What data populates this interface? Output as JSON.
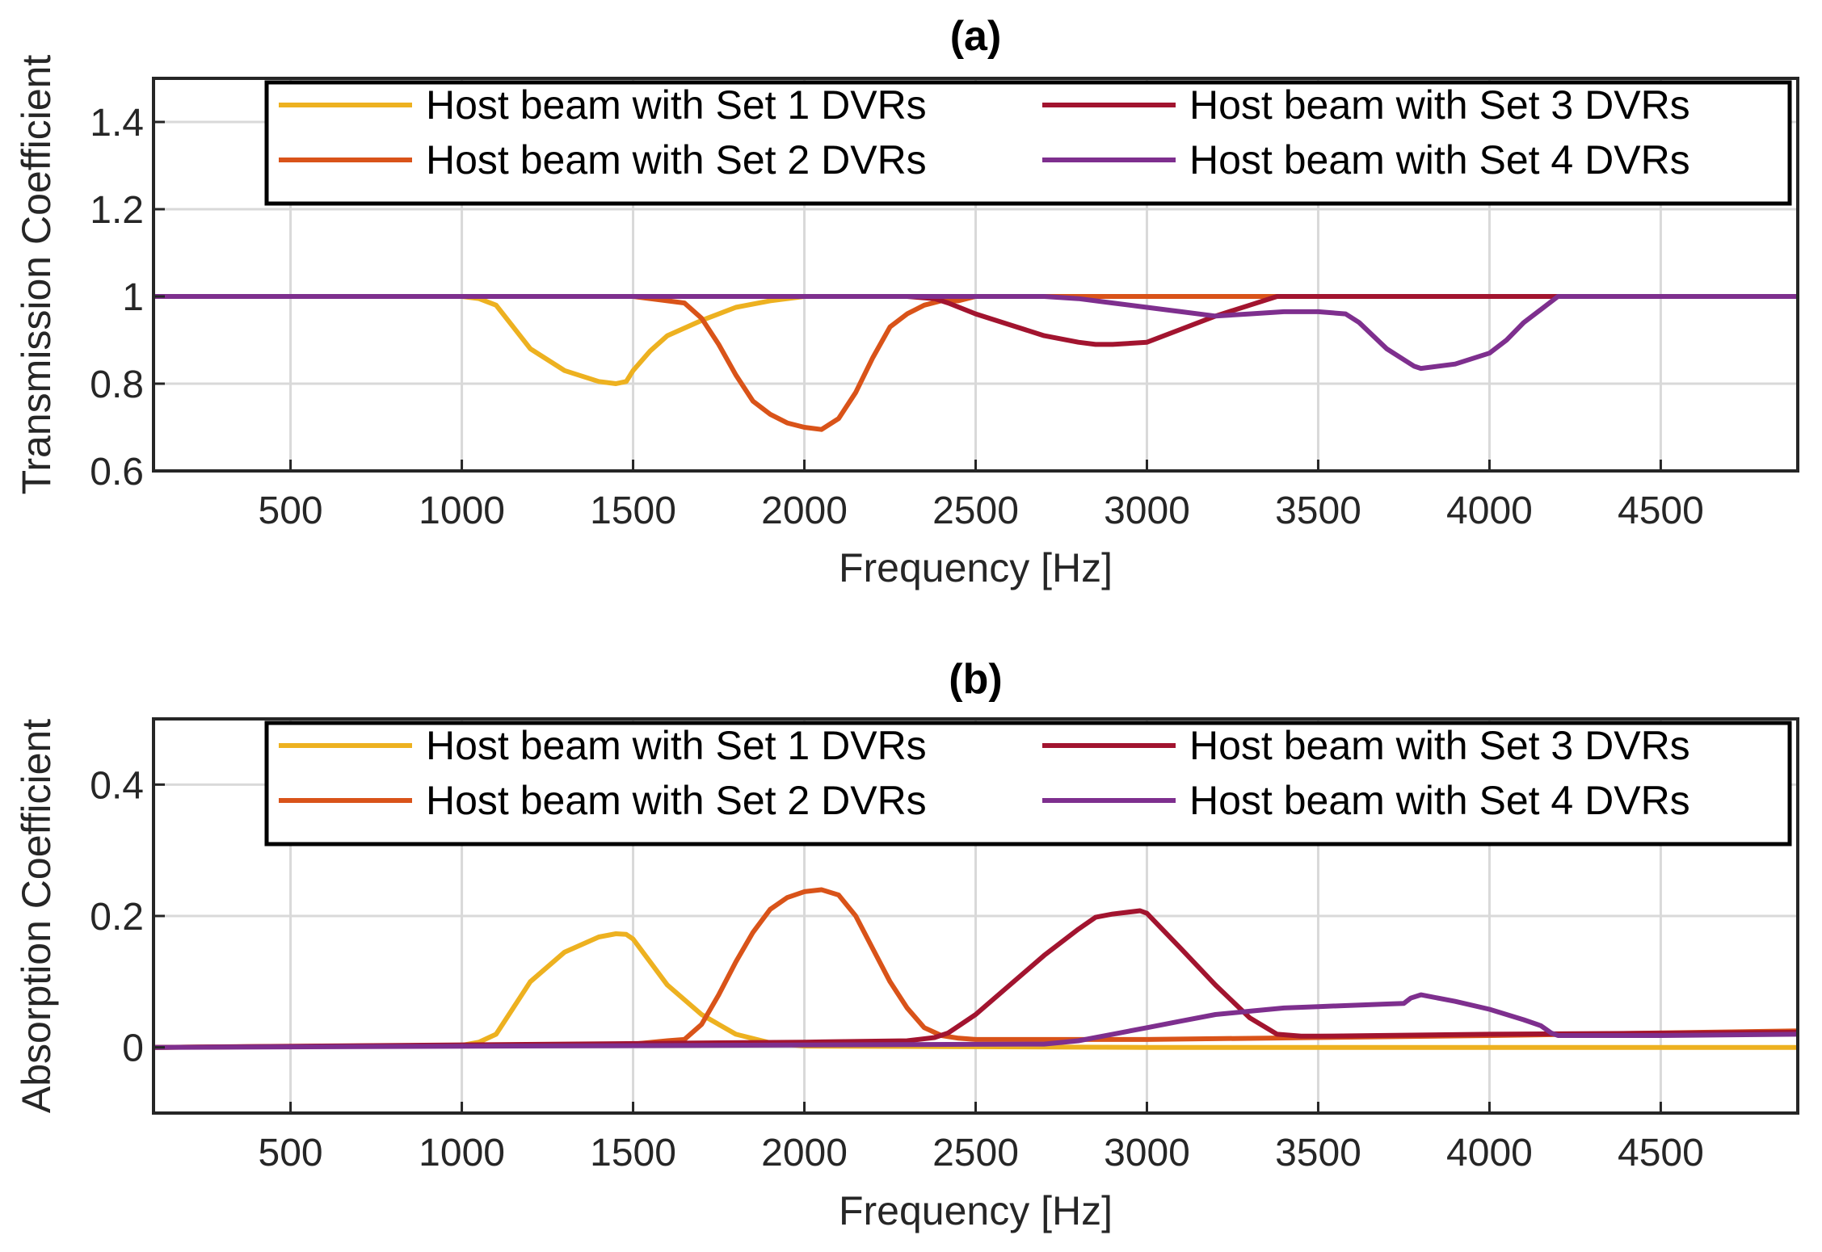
{
  "chart_data": [
    {
      "type": "line",
      "title": "(a)",
      "xlabel": "Frequency [Hz]",
      "ylabel": "Transmission Coefficient",
      "xlim": [
        100,
        4900
      ],
      "ylim": [
        0.6,
        1.5
      ],
      "xticks": [
        500,
        1000,
        1500,
        2000,
        2500,
        3000,
        3500,
        4000,
        4500
      ],
      "xtick_labels": [
        "500",
        "1000",
        "1500",
        "2000",
        "2500",
        "3000",
        "3500",
        "4000",
        "4500"
      ],
      "yticks": [
        0.6,
        0.8,
        1,
        1.2,
        1.4
      ],
      "ytick_labels": [
        "0.6",
        "0.8",
        "1",
        "1.2",
        "1.4"
      ],
      "grid": true,
      "legend_position": "top-right",
      "series": [
        {
          "name": "Host beam with Set 1 DVRs",
          "color": "#EDB120",
          "x": [
            100,
            1000,
            1050,
            1100,
            1150,
            1200,
            1300,
            1400,
            1450,
            1480,
            1500,
            1550,
            1600,
            1700,
            1800,
            1900,
            2000,
            4900
          ],
          "y": [
            1,
            1,
            0.995,
            0.98,
            0.93,
            0.88,
            0.83,
            0.805,
            0.8,
            0.805,
            0.83,
            0.875,
            0.91,
            0.945,
            0.975,
            0.99,
            1,
            1
          ]
        },
        {
          "name": "Host beam with Set 2 DVRs",
          "color": "#D95319",
          "x": [
            100,
            1500,
            1600,
            1650,
            1700,
            1750,
            1800,
            1850,
            1900,
            1950,
            2000,
            2050,
            2100,
            2150,
            2200,
            2250,
            2300,
            2350,
            2400,
            2450,
            2500,
            4900
          ],
          "y": [
            1,
            1,
            0.99,
            0.985,
            0.95,
            0.89,
            0.82,
            0.76,
            0.73,
            0.71,
            0.7,
            0.695,
            0.72,
            0.78,
            0.86,
            0.93,
            0.96,
            0.98,
            0.99,
            0.99,
            1,
            1
          ]
        },
        {
          "name": "Host beam with Set 3 DVRs",
          "color": "#A2142F",
          "x": [
            100,
            2300,
            2380,
            2420,
            2500,
            2600,
            2700,
            2800,
            2850,
            2900,
            3000,
            3100,
            3200,
            3300,
            3380,
            4900
          ],
          "y": [
            1,
            1,
            0.995,
            0.985,
            0.96,
            0.935,
            0.91,
            0.895,
            0.89,
            0.89,
            0.895,
            0.925,
            0.955,
            0.98,
            1,
            1
          ]
        },
        {
          "name": "Host beam with Set 4 DVRs",
          "color": "#7E2F8E",
          "x": [
            100,
            2700,
            2800,
            2900,
            3000,
            3100,
            3200,
            3300,
            3400,
            3500,
            3580,
            3620,
            3700,
            3760,
            3780,
            3800,
            3900,
            4000,
            4050,
            4100,
            4150,
            4200,
            4900
          ],
          "y": [
            1,
            1,
            0.995,
            0.985,
            0.975,
            0.965,
            0.955,
            0.96,
            0.965,
            0.965,
            0.96,
            0.94,
            0.88,
            0.85,
            0.84,
            0.835,
            0.845,
            0.87,
            0.9,
            0.94,
            0.97,
            1,
            1
          ]
        }
      ]
    },
    {
      "type": "line",
      "title": "(b)",
      "xlabel": "Frequency [Hz]",
      "ylabel": "Absorption Coefficient",
      "xlim": [
        100,
        4900
      ],
      "ylim": [
        -0.1,
        0.5
      ],
      "xticks": [
        500,
        1000,
        1500,
        2000,
        2500,
        3000,
        3500,
        4000,
        4500
      ],
      "xtick_labels": [
        "500",
        "1000",
        "1500",
        "2000",
        "2500",
        "3000",
        "3500",
        "4000",
        "4500"
      ],
      "yticks": [
        0,
        0.2,
        0.4
      ],
      "ytick_labels": [
        "0",
        "0.2",
        "0.4"
      ],
      "grid": true,
      "legend_position": "top-right",
      "series": [
        {
          "name": "Host beam with Set 1 DVRs",
          "color": "#EDB120",
          "x": [
            100,
            1000,
            1050,
            1100,
            1150,
            1200,
            1300,
            1400,
            1450,
            1480,
            1500,
            1550,
            1600,
            1700,
            1800,
            1900,
            2000,
            3000,
            4900
          ],
          "y": [
            0,
            0.003,
            0.008,
            0.02,
            0.06,
            0.1,
            0.145,
            0.168,
            0.173,
            0.172,
            0.165,
            0.13,
            0.095,
            0.05,
            0.02,
            0.007,
            0.002,
            0,
            0
          ]
        },
        {
          "name": "Host beam with Set 2 DVRs",
          "color": "#D95319",
          "x": [
            100,
            1500,
            1600,
            1650,
            1700,
            1750,
            1800,
            1850,
            1900,
            1950,
            2000,
            2050,
            2100,
            2150,
            2200,
            2250,
            2300,
            2350,
            2400,
            2450,
            2500,
            3000,
            4000,
            4900
          ],
          "y": [
            0,
            0.005,
            0.01,
            0.012,
            0.035,
            0.08,
            0.13,
            0.175,
            0.21,
            0.228,
            0.237,
            0.24,
            0.232,
            0.2,
            0.15,
            0.1,
            0.06,
            0.03,
            0.018,
            0.014,
            0.012,
            0.012,
            0.018,
            0.025
          ]
        },
        {
          "name": "Host beam with Set 3 DVRs",
          "color": "#A2142F",
          "x": [
            100,
            2000,
            2300,
            2380,
            2420,
            2500,
            2600,
            2700,
            2800,
            2850,
            2900,
            2980,
            3000,
            3100,
            3200,
            3300,
            3380,
            3450,
            3500,
            4000,
            4900
          ],
          "y": [
            0,
            0.008,
            0.01,
            0.015,
            0.022,
            0.05,
            0.095,
            0.14,
            0.18,
            0.198,
            0.203,
            0.208,
            0.204,
            0.15,
            0.095,
            0.045,
            0.02,
            0.017,
            0.017,
            0.02,
            0.023
          ]
        },
        {
          "name": "Host beam with Set 4 DVRs",
          "color": "#7E2F8E",
          "x": [
            100,
            2700,
            2800,
            2900,
            3000,
            3100,
            3200,
            3300,
            3400,
            3500,
            3600,
            3700,
            3750,
            3770,
            3800,
            3900,
            4000,
            4100,
            4150,
            4180,
            4200,
            4500,
            4900
          ],
          "y": [
            0,
            0.005,
            0.01,
            0.02,
            0.03,
            0.04,
            0.05,
            0.055,
            0.06,
            0.062,
            0.064,
            0.066,
            0.067,
            0.075,
            0.08,
            0.07,
            0.058,
            0.042,
            0.033,
            0.022,
            0.018,
            0.018,
            0.02
          ]
        }
      ]
    }
  ]
}
